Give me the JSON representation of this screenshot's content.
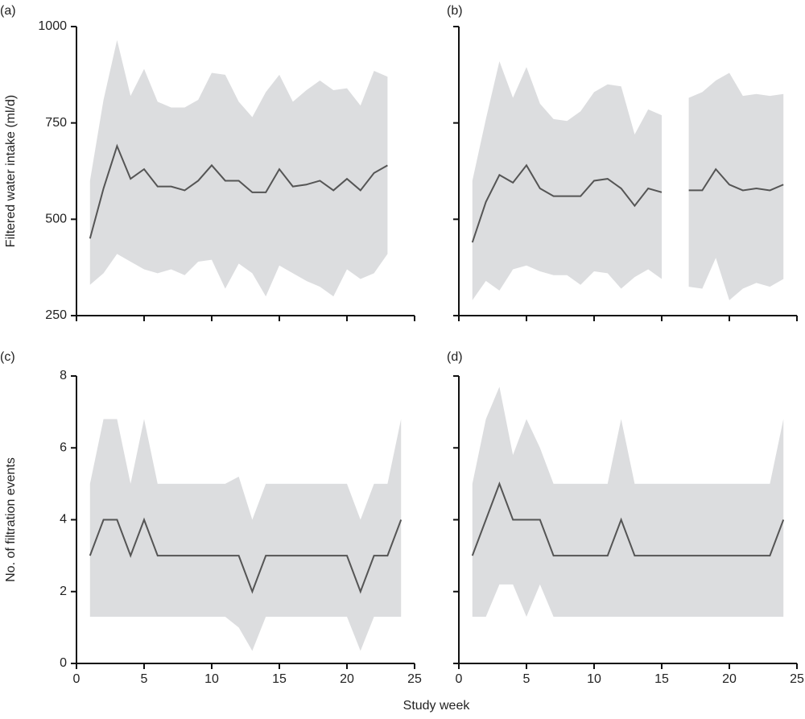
{
  "xlabel": "Study week",
  "chart_data": [
    {
      "type": "line",
      "label": "(a)",
      "ylabel": "Filtered water intake (ml/d)",
      "x": [
        1,
        2,
        3,
        4,
        5,
        6,
        7,
        8,
        9,
        10,
        11,
        12,
        13,
        14,
        15,
        16,
        17,
        18,
        19,
        20,
        21,
        22,
        23
      ],
      "values": [
        450,
        580,
        690,
        605,
        630,
        585,
        585,
        575,
        600,
        640,
        600,
        600,
        570,
        570,
        630,
        585,
        590,
        600,
        575,
        605,
        575,
        620,
        640
      ],
      "band_upper": [
        600,
        810,
        965,
        820,
        890,
        805,
        790,
        790,
        810,
        880,
        875,
        805,
        765,
        830,
        875,
        805,
        835,
        860,
        835,
        840,
        795,
        885,
        870
      ],
      "band_lower": [
        330,
        360,
        410,
        390,
        370,
        360,
        370,
        355,
        390,
        395,
        320,
        385,
        360,
        300,
        380,
        360,
        340,
        325,
        300,
        370,
        345,
        360,
        410
      ],
      "color": "#555555",
      "band_color": "#dcdddf",
      "xlim": [
        0,
        25
      ],
      "xticks": [
        0,
        5,
        10,
        15,
        20,
        25
      ],
      "show_xtick_labels": false,
      "ylim": [
        250,
        1000
      ],
      "yticks": [
        250,
        500,
        750,
        1000
      ],
      "show_ytick_labels": true
    },
    {
      "type": "line",
      "label": "(b)",
      "x": [
        1,
        2,
        3,
        4,
        5,
        6,
        7,
        8,
        9,
        10,
        11,
        12,
        13,
        14,
        15,
        16,
        17,
        18,
        19,
        20,
        21,
        22,
        23,
        24
      ],
      "values": [
        440,
        545,
        615,
        595,
        640,
        580,
        560,
        560,
        560,
        600,
        605,
        580,
        535,
        580,
        570,
        null,
        575,
        575,
        630,
        590,
        575,
        580,
        575,
        590
      ],
      "band_upper": [
        600,
        760,
        910,
        815,
        895,
        800,
        760,
        755,
        780,
        830,
        850,
        845,
        720,
        785,
        770,
        null,
        815,
        830,
        860,
        880,
        820,
        825,
        820,
        825
      ],
      "band_lower": [
        290,
        340,
        315,
        370,
        380,
        365,
        355,
        355,
        330,
        365,
        360,
        320,
        350,
        370,
        345,
        null,
        325,
        320,
        400,
        290,
        320,
        335,
        325,
        345
      ],
      "color": "#555555",
      "band_color": "#dcdddf",
      "xlim": [
        0,
        25
      ],
      "xticks": [
        0,
        5,
        10,
        15,
        20,
        25
      ],
      "show_xtick_labels": false,
      "ylim": [
        250,
        1000
      ],
      "yticks": [
        250,
        500,
        750,
        1000
      ],
      "show_ytick_labels": false
    },
    {
      "type": "line",
      "label": "(c)",
      "ylabel": "No. of filtration events",
      "x": [
        1,
        2,
        3,
        4,
        5,
        6,
        7,
        8,
        9,
        10,
        11,
        12,
        13,
        14,
        15,
        16,
        17,
        18,
        19,
        20,
        21,
        22,
        23,
        24
      ],
      "values": [
        3,
        4,
        4,
        3,
        4,
        3,
        3,
        3,
        3,
        3,
        3,
        3,
        2,
        3,
        3,
        3,
        3,
        3,
        3,
        3,
        2,
        3,
        3,
        4
      ],
      "band_upper": [
        5,
        6.8,
        6.8,
        5,
        6.8,
        5,
        5,
        5,
        5,
        5,
        5,
        5.2,
        4,
        5,
        5,
        5,
        5,
        5,
        5,
        5,
        4,
        5,
        5,
        6.8
      ],
      "band_lower": [
        1.3,
        1.3,
        1.3,
        1.3,
        1.3,
        1.3,
        1.3,
        1.3,
        1.3,
        1.3,
        1.3,
        1,
        0.35,
        1.3,
        1.3,
        1.3,
        1.3,
        1.3,
        1.3,
        1.3,
        0.35,
        1.3,
        1.3,
        1.3
      ],
      "color": "#555555",
      "band_color": "#dcdddf",
      "xlim": [
        0,
        25
      ],
      "xticks": [
        0,
        5,
        10,
        15,
        20,
        25
      ],
      "show_xtick_labels": true,
      "ylim": [
        0,
        8
      ],
      "yticks": [
        0,
        2,
        4,
        6,
        8
      ],
      "show_ytick_labels": true
    },
    {
      "type": "line",
      "label": "(d)",
      "x": [
        1,
        2,
        3,
        4,
        5,
        6,
        7,
        8,
        9,
        10,
        11,
        12,
        13,
        14,
        15,
        16,
        17,
        18,
        19,
        20,
        21,
        22,
        23,
        24
      ],
      "values": [
        3,
        4,
        5,
        4,
        4,
        4,
        3,
        3,
        3,
        3,
        3,
        4,
        3,
        3,
        3,
        3,
        3,
        3,
        3,
        3,
        3,
        3,
        3,
        4
      ],
      "band_upper": [
        5,
        6.8,
        7.7,
        5.8,
        6.8,
        6,
        5,
        5,
        5,
        5,
        5,
        6.8,
        5,
        5,
        5,
        5,
        5,
        5,
        5,
        5,
        5,
        5,
        5,
        6.8
      ],
      "band_lower": [
        1.3,
        1.3,
        2.2,
        2.2,
        1.3,
        2.2,
        1.3,
        1.3,
        1.3,
        1.3,
        1.3,
        1.3,
        1.3,
        1.3,
        1.3,
        1.3,
        1.3,
        1.3,
        1.3,
        1.3,
        1.3,
        1.3,
        1.3,
        1.3
      ],
      "color": "#555555",
      "band_color": "#dcdddf",
      "xlim": [
        0,
        25
      ],
      "xticks": [
        0,
        5,
        10,
        15,
        20,
        25
      ],
      "show_xtick_labels": true,
      "ylim": [
        0,
        8
      ],
      "yticks": [
        0,
        2,
        4,
        6,
        8
      ],
      "show_ytick_labels": false
    }
  ]
}
